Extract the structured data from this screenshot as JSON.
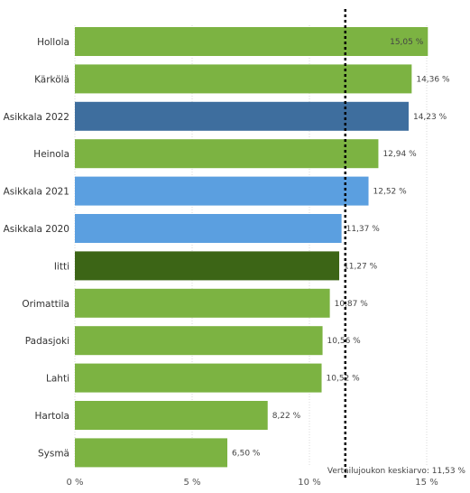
{
  "chart_data": {
    "type": "bar",
    "orientation": "horizontal",
    "title": "",
    "categories": [
      "Hollola",
      "Kärkölä",
      "Asikkala 2022",
      "Heinola",
      "Asikkala 2021",
      "Asikkala 2020",
      "Iitti",
      "Orimattila",
      "Padasjoki",
      "Lahti",
      "Hartola",
      "Sysmä"
    ],
    "values": [
      15.05,
      14.36,
      14.23,
      12.94,
      12.52,
      11.37,
      11.27,
      10.87,
      10.56,
      10.52,
      8.22,
      6.5
    ],
    "value_labels": [
      "15,05 %",
      "14,36 %",
      "14,23 %",
      "12,94 %",
      "12,52 %",
      "11,37 %",
      "11,27 %",
      "10,87 %",
      "10,56 %",
      "10,52 %",
      "8,22 %",
      "6,50 %"
    ],
    "bar_colors": [
      "#7cb342",
      "#7cb342",
      "#3e6e9e",
      "#7cb342",
      "#5b9fe0",
      "#5b9fe0",
      "#3c6516",
      "#7cb342",
      "#7cb342",
      "#7cb342",
      "#7cb342",
      "#7cb342"
    ],
    "xlim": [
      0,
      15
    ],
    "x_ticks": [
      0,
      5,
      10,
      15
    ],
    "x_tick_labels": [
      "0 %",
      "5 %",
      "10 %",
      "15 %"
    ],
    "grid": true,
    "reference_line": {
      "value": 11.53,
      "label": "Vertailujoukon keskiarvo: 11,53 %",
      "style": "dotted",
      "color": "#000000"
    }
  }
}
